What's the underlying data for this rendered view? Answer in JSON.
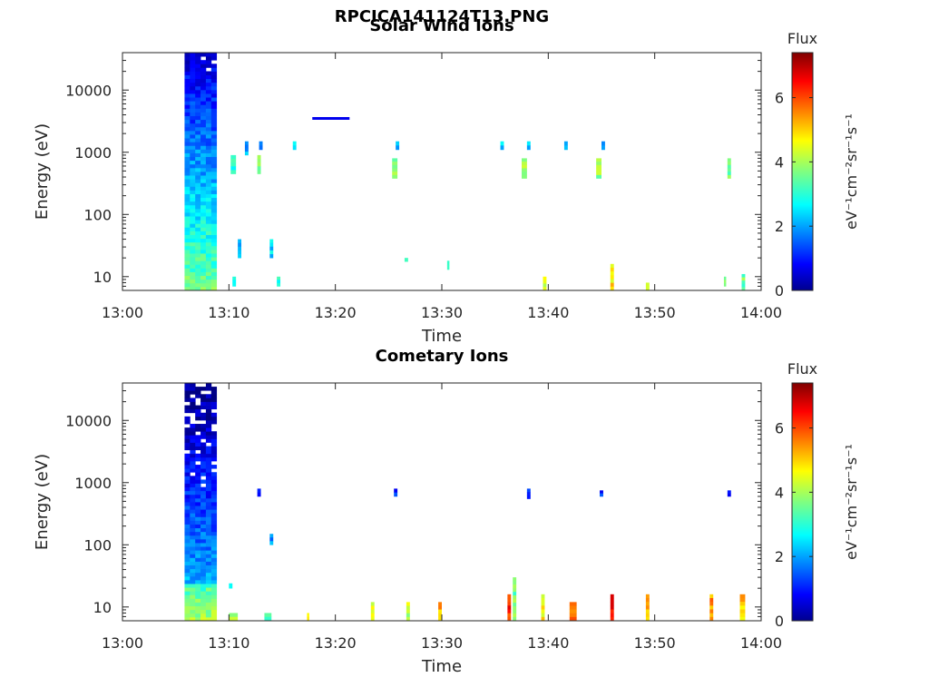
{
  "figure": {
    "title": "RPCICA141124T13.PNG"
  },
  "colorbar": {
    "title": "Flux",
    "label": "eV⁻¹cm⁻²sr⁻¹s⁻¹",
    "range": [
      0,
      7.4
    ],
    "ticks": [
      0,
      2,
      4,
      6
    ],
    "colormap": "jet"
  },
  "chart_data": [
    {
      "type": "heatmap",
      "title": "Solar Wind Ions",
      "xlabel": "Time",
      "ylabel": "Energy (eV)",
      "xlim": [
        "13:00",
        "14:00"
      ],
      "ylim": [
        6,
        40000
      ],
      "yscale": "log",
      "xticks": [
        "13:00",
        "13:10",
        "13:20",
        "13:30",
        "13:40",
        "13:50",
        "14:00"
      ],
      "yticks": [
        10,
        100,
        1000,
        10000
      ],
      "grid": false,
      "blocks": [
        {
          "t0": "13:05:50",
          "t1": "13:08:50",
          "e0": 6,
          "e1": 40000,
          "type": "dense_column"
        }
      ],
      "features": [
        {
          "t0": "13:17:50",
          "t1": "13:21:20",
          "e0": 3500,
          "e1": 3500,
          "flux": 0.8,
          "type": "hline"
        },
        {
          "t0": "13:10:10",
          "t1": "13:10:40",
          "e0": 450,
          "e1": 900,
          "flux": 3.2
        },
        {
          "t0": "13:12:40",
          "t1": "13:13:00",
          "e0": 450,
          "e1": 900,
          "flux": 3.6
        },
        {
          "t0": "13:25:20",
          "t1": "13:25:50",
          "e0": 380,
          "e1": 800,
          "flux": 3.8
        },
        {
          "t0": "13:37:30",
          "t1": "13:38:00",
          "e0": 380,
          "e1": 800,
          "flux": 3.8
        },
        {
          "t0": "13:44:30",
          "t1": "13:45:00",
          "e0": 380,
          "e1": 800,
          "flux": 3.8
        },
        {
          "t0": "13:56:50",
          "t1": "13:57:10",
          "e0": 380,
          "e1": 800,
          "flux": 3.6
        },
        {
          "t0": "13:11:30",
          "t1": "13:11:50",
          "e0": 900,
          "e1": 1500,
          "flux": 2.2
        },
        {
          "t0": "13:12:50",
          "t1": "13:13:10",
          "e0": 1100,
          "e1": 1500,
          "flux": 2.2
        },
        {
          "t0": "13:25:40",
          "t1": "13:26:00",
          "e0": 1100,
          "e1": 1500,
          "flux": 2.2
        },
        {
          "t0": "13:35:30",
          "t1": "13:35:50",
          "e0": 1100,
          "e1": 1500,
          "flux": 2.4
        },
        {
          "t0": "13:38:00",
          "t1": "13:38:20",
          "e0": 1100,
          "e1": 1500,
          "flux": 2.2
        },
        {
          "t0": "13:41:30",
          "t1": "13:41:50",
          "e0": 1100,
          "e1": 1500,
          "flux": 2.4
        },
        {
          "t0": "13:45:00",
          "t1": "13:45:20",
          "e0": 1100,
          "e1": 1500,
          "flux": 2.2
        },
        {
          "t0": "13:16:00",
          "t1": "13:16:20",
          "e0": 1100,
          "e1": 1500,
          "flux": 2.6
        },
        {
          "t0": "13:26:30",
          "t1": "13:26:50",
          "e0": 20,
          "e1": 20,
          "flux": 3.0
        },
        {
          "t0": "13:30:30",
          "t1": "13:30:40",
          "e0": 13,
          "e1": 18,
          "flux": 3.0
        },
        {
          "t0": "13:39:30",
          "t1": "13:39:50",
          "e0": 6,
          "e1": 10,
          "flux": 4.2
        },
        {
          "t0": "13:45:50",
          "t1": "13:46:10",
          "e0": 6,
          "e1": 16,
          "flux": 4.8
        },
        {
          "t0": "13:49:10",
          "t1": "13:49:30",
          "e0": 6,
          "e1": 8,
          "flux": 4.0
        },
        {
          "t0": "13:56:30",
          "t1": "13:56:40",
          "e0": 7,
          "e1": 10,
          "flux": 3.6
        },
        {
          "t0": "13:58:10",
          "t1": "13:58:30",
          "e0": 6,
          "e1": 11,
          "flux": 3.6
        },
        {
          "t0": "13:10:50",
          "t1": "13:11:10",
          "e0": 20,
          "e1": 40,
          "flux": 2.4
        },
        {
          "t0": "13:13:50",
          "t1": "13:14:10",
          "e0": 20,
          "e1": 40,
          "flux": 2.6
        },
        {
          "t0": "13:14:30",
          "t1": "13:14:50",
          "e0": 7,
          "e1": 10,
          "flux": 3.2
        },
        {
          "t0": "13:10:20",
          "t1": "13:10:40",
          "e0": 7,
          "e1": 10,
          "flux": 3.2
        }
      ]
    },
    {
      "type": "heatmap",
      "title": "Cometary Ions",
      "xlabel": "Time",
      "ylabel": "Energy (eV)",
      "xlim": [
        "13:00",
        "14:00"
      ],
      "ylim": [
        6,
        40000
      ],
      "yscale": "log",
      "xticks": [
        "13:00",
        "13:10",
        "13:20",
        "13:30",
        "13:40",
        "13:50",
        "14:00"
      ],
      "yticks": [
        10,
        100,
        1000,
        10000
      ],
      "grid": false,
      "blocks": [
        {
          "t0": "13:05:50",
          "t1": "13:08:50",
          "e0": 6,
          "e1": 40000,
          "type": "dense_column"
        }
      ],
      "features": [
        {
          "t0": "13:12:40",
          "t1": "13:13:00",
          "e0": 600,
          "e1": 800,
          "flux": 1.4
        },
        {
          "t0": "13:25:30",
          "t1": "13:25:50",
          "e0": 600,
          "e1": 800,
          "flux": 1.2
        },
        {
          "t0": "13:38:00",
          "t1": "13:38:20",
          "e0": 550,
          "e1": 800,
          "flux": 1.2
        },
        {
          "t0": "13:44:50",
          "t1": "13:45:10",
          "e0": 600,
          "e1": 750,
          "flux": 1.2
        },
        {
          "t0": "13:56:50",
          "t1": "13:57:10",
          "e0": 600,
          "e1": 750,
          "flux": 1.2
        },
        {
          "t0": "13:13:50",
          "t1": "13:14:10",
          "e0": 100,
          "e1": 150,
          "flux": 2.0
        },
        {
          "t0": "13:10:00",
          "t1": "13:10:20",
          "e0": 20,
          "e1": 24,
          "flux": 3.0
        },
        {
          "t0": "13:10:00",
          "t1": "13:10:50",
          "e0": 6,
          "e1": 8,
          "flux": 4.0
        },
        {
          "t0": "13:13:20",
          "t1": "13:14:00",
          "e0": 6,
          "e1": 8,
          "flux": 3.6
        },
        {
          "t0": "13:17:20",
          "t1": "13:17:30",
          "e0": 6,
          "e1": 8,
          "flux": 4.4
        },
        {
          "t0": "13:23:20",
          "t1": "13:23:40",
          "e0": 6,
          "e1": 12,
          "flux": 4.6
        },
        {
          "t0": "13:26:40",
          "t1": "13:27:00",
          "e0": 6,
          "e1": 12,
          "flux": 4.2
        },
        {
          "t0": "13:29:40",
          "t1": "13:30:00",
          "e0": 6,
          "e1": 12,
          "flux": 5.2
        },
        {
          "t0": "13:36:10",
          "t1": "13:36:30",
          "e0": 6,
          "e1": 16,
          "flux": 6.2
        },
        {
          "t0": "13:36:40",
          "t1": "13:37:00",
          "e0": 6,
          "e1": 30,
          "flux": 3.6
        },
        {
          "t0": "13:39:20",
          "t1": "13:39:40",
          "e0": 6,
          "e1": 16,
          "flux": 4.6
        },
        {
          "t0": "13:42:00",
          "t1": "13:42:40",
          "e0": 6,
          "e1": 12,
          "flux": 5.6
        },
        {
          "t0": "13:45:50",
          "t1": "13:46:10",
          "e0": 6,
          "e1": 16,
          "flux": 6.6
        },
        {
          "t0": "13:49:10",
          "t1": "13:49:30",
          "e0": 6,
          "e1": 16,
          "flux": 5.0
        },
        {
          "t0": "13:55:10",
          "t1": "13:55:30",
          "e0": 6,
          "e1": 16,
          "flux": 5.4
        },
        {
          "t0": "13:58:00",
          "t1": "13:58:30",
          "e0": 6,
          "e1": 16,
          "flux": 5.0
        }
      ]
    }
  ]
}
